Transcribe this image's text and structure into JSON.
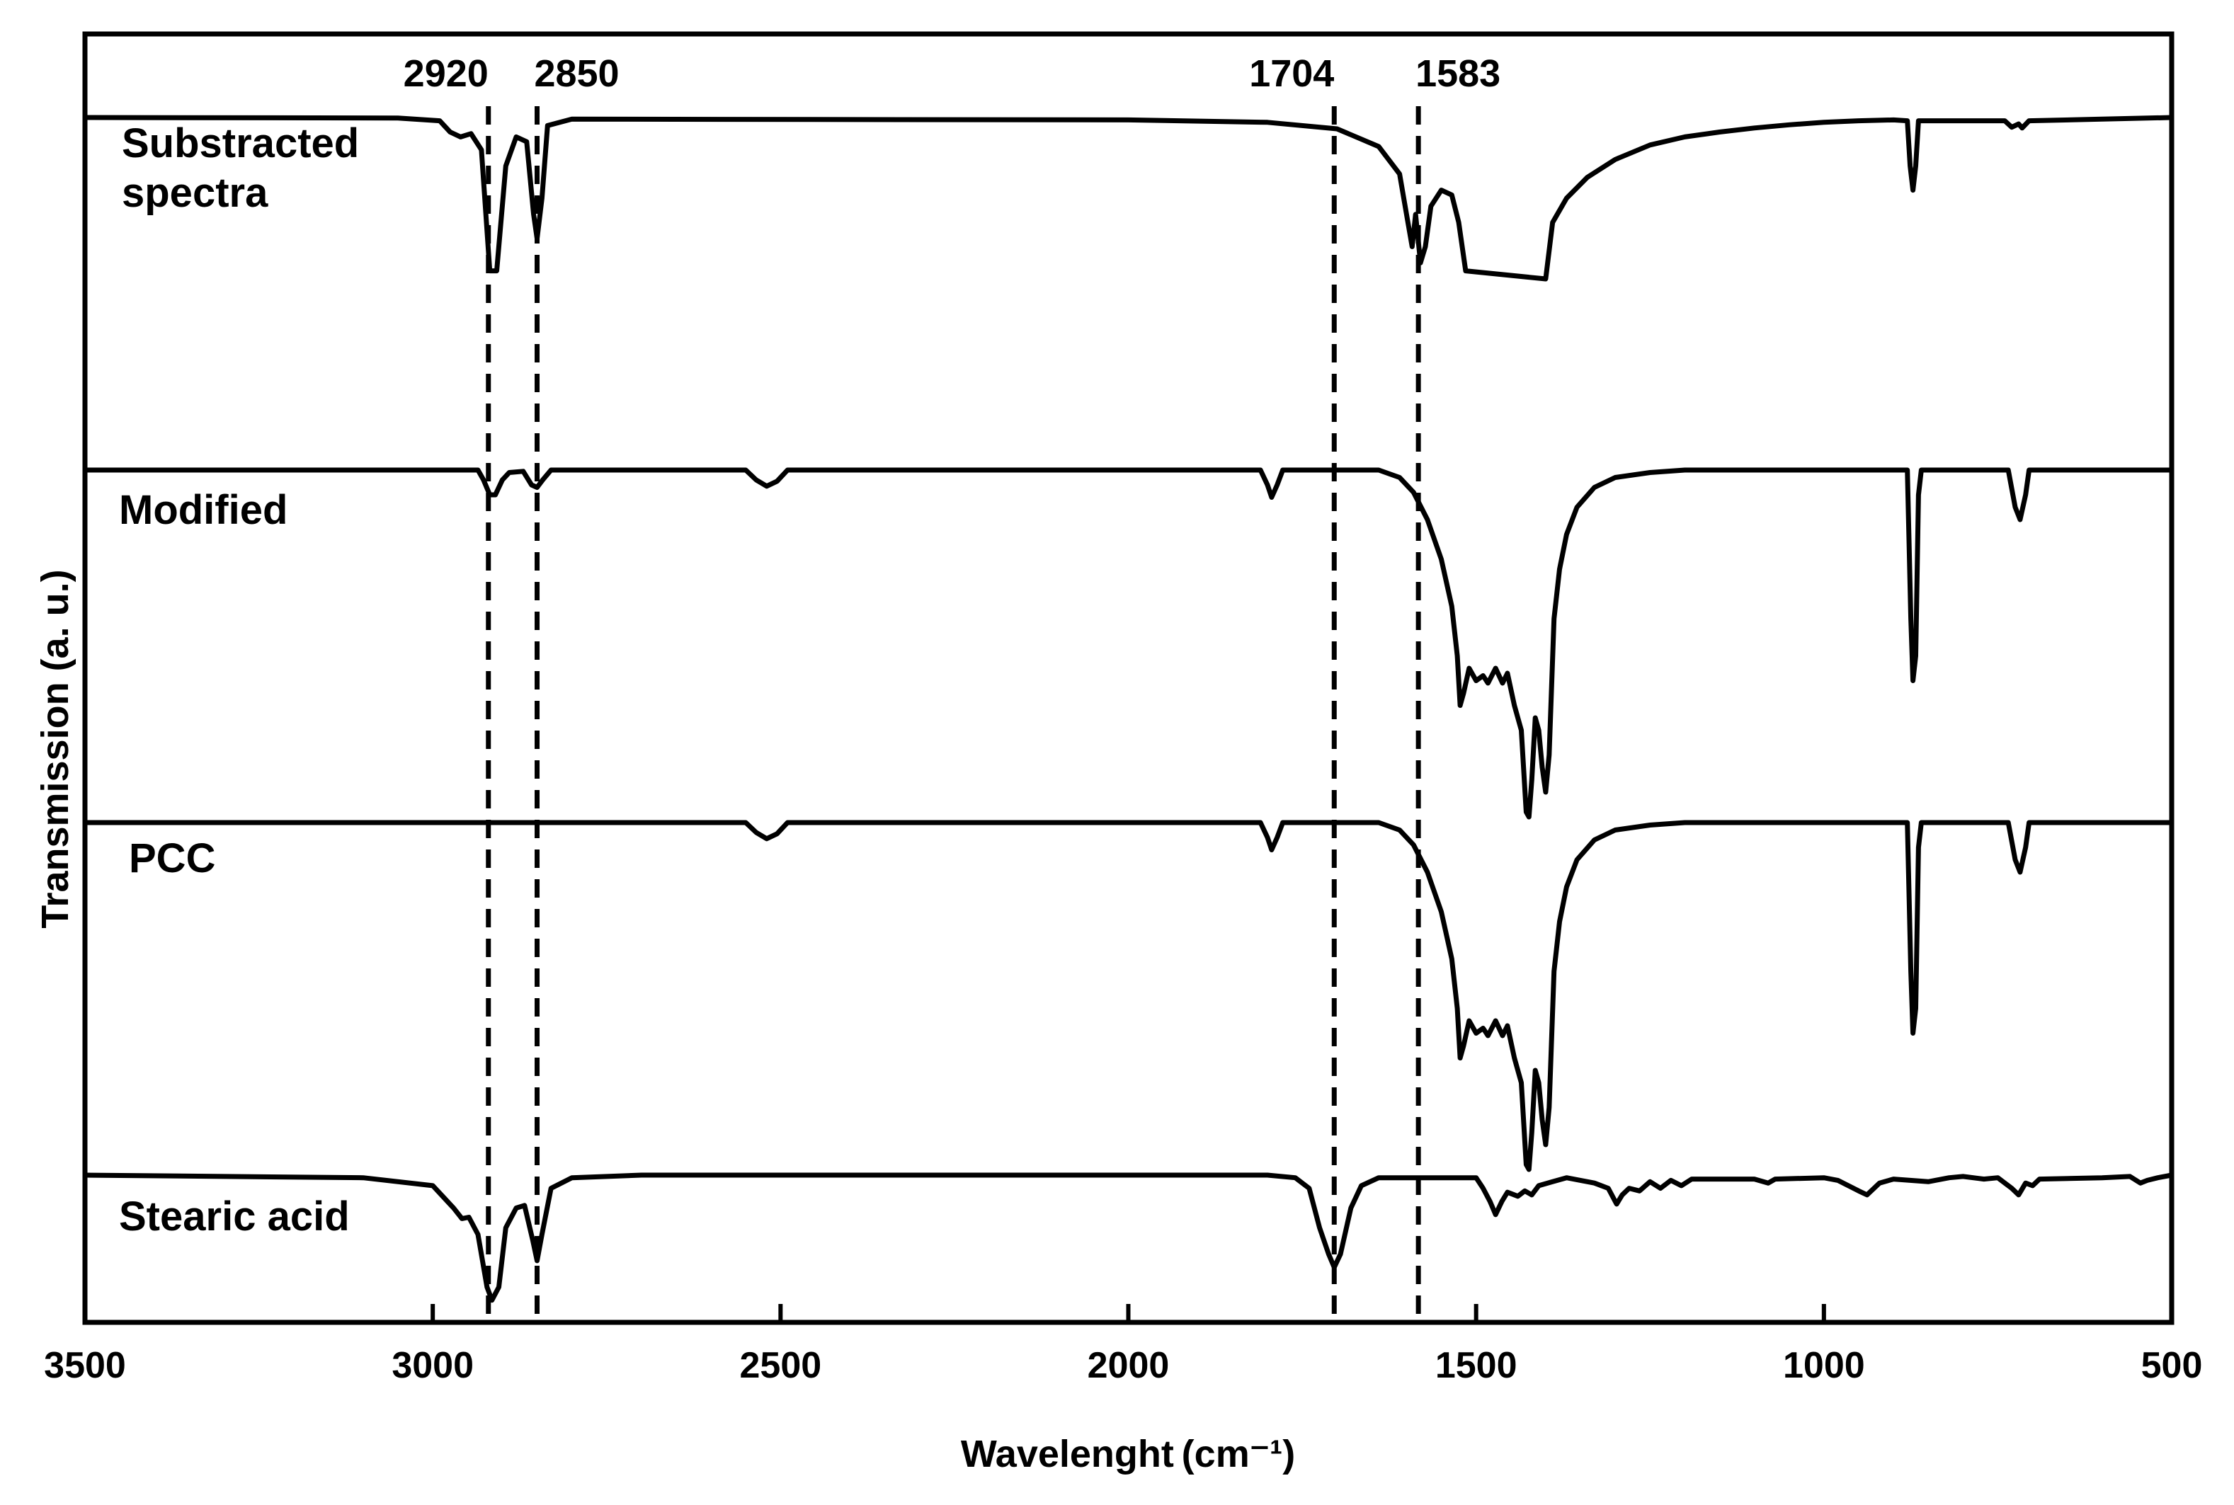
{
  "chart_data": {
    "type": "line",
    "xlabel": "Wavelenght (cm⁻¹)",
    "ylabel": "Transmission (a. u.)",
    "xlim": [
      3500,
      500
    ],
    "x_reversed": true,
    "x_ticks": [
      3500,
      3000,
      2500,
      2000,
      1500,
      1000,
      500
    ],
    "grid": false,
    "legend": "none",
    "y_ticks_shown": false,
    "peak_markers": [
      {
        "x": 2920,
        "label": "2920"
      },
      {
        "x": 2850,
        "label": "2850"
      },
      {
        "x": 1704,
        "label": "1704"
      },
      {
        "x": 1583,
        "label": "1583"
      }
    ],
    "series": [
      {
        "name": "Substracted spectra",
        "baseline": 0.0,
        "points": [
          [
            3500,
            0
          ],
          [
            3050,
            0.003
          ],
          [
            2990,
            0.02
          ],
          [
            2975,
            0.09
          ],
          [
            2960,
            0.12
          ],
          [
            2945,
            0.1
          ],
          [
            2930,
            0.2
          ],
          [
            2918,
            0.95
          ],
          [
            2908,
            0.95
          ],
          [
            2895,
            0.3
          ],
          [
            2880,
            0.12
          ],
          [
            2865,
            0.15
          ],
          [
            2855,
            0.6
          ],
          [
            2850,
            0.75
          ],
          [
            2843,
            0.5
          ],
          [
            2835,
            0.05
          ],
          [
            2800,
            0.01
          ],
          [
            2000,
            0.015
          ],
          [
            1800,
            0.03
          ],
          [
            1700,
            0.07
          ],
          [
            1640,
            0.18
          ],
          [
            1610,
            0.35
          ],
          [
            1600,
            0.6
          ],
          [
            1592,
            0.8
          ],
          [
            1587,
            0.6
          ],
          [
            1580,
            0.9
          ],
          [
            1573,
            0.8
          ],
          [
            1565,
            0.55
          ],
          [
            1550,
            0.45
          ],
          [
            1535,
            0.48
          ],
          [
            1525,
            0.65
          ],
          [
            1515,
            0.95
          ],
          [
            1400,
            1.0
          ],
          [
            1390,
            0.65
          ],
          [
            1370,
            0.5
          ],
          [
            1340,
            0.37
          ],
          [
            1300,
            0.26
          ],
          [
            1250,
            0.17
          ],
          [
            1200,
            0.12
          ],
          [
            1150,
            0.09
          ],
          [
            1100,
            0.065
          ],
          [
            1050,
            0.045
          ],
          [
            1000,
            0.03
          ],
          [
            950,
            0.02
          ],
          [
            900,
            0.015
          ],
          [
            880,
            0.02
          ],
          [
            876,
            0.3
          ],
          [
            872,
            0.45
          ],
          [
            868,
            0.3
          ],
          [
            864,
            0.02
          ],
          [
            740,
            0.02
          ],
          [
            730,
            0.06
          ],
          [
            720,
            0.04
          ],
          [
            715,
            0.065
          ],
          [
            705,
            0.02
          ],
          [
            600,
            0.01
          ],
          [
            500,
            0.0
          ]
        ]
      },
      {
        "name": "Modified",
        "baseline": 0.0,
        "points": [
          [
            3500,
            0
          ],
          [
            2935,
            0
          ],
          [
            2927,
            0.04
          ],
          [
            2918,
            0.1
          ],
          [
            2910,
            0.1
          ],
          [
            2900,
            0.04
          ],
          [
            2890,
            0.01
          ],
          [
            2870,
            0.005
          ],
          [
            2858,
            0.06
          ],
          [
            2850,
            0.07
          ],
          [
            2842,
            0.04
          ],
          [
            2830,
            0
          ],
          [
            2550,
            0
          ],
          [
            2535,
            0.04
          ],
          [
            2520,
            0.065
          ],
          [
            2505,
            0.045
          ],
          [
            2490,
            0
          ],
          [
            1810,
            0
          ],
          [
            1800,
            0.06
          ],
          [
            1794,
            0.11
          ],
          [
            1786,
            0.06
          ],
          [
            1778,
            0
          ],
          [
            1640,
            0
          ],
          [
            1610,
            0.03
          ],
          [
            1590,
            0.09
          ],
          [
            1570,
            0.2
          ],
          [
            1550,
            0.36
          ],
          [
            1535,
            0.55
          ],
          [
            1527,
            0.75
          ],
          [
            1523,
            0.95
          ],
          [
            1518,
            0.9
          ],
          [
            1510,
            0.8
          ],
          [
            1500,
            0.85
          ],
          [
            1490,
            0.83
          ],
          [
            1483,
            0.86
          ],
          [
            1472,
            0.8
          ],
          [
            1462,
            0.86
          ],
          [
            1455,
            0.82
          ],
          [
            1445,
            0.95
          ],
          [
            1435,
            1.05
          ],
          [
            1428,
            1.38
          ],
          [
            1424,
            1.4
          ],
          [
            1420,
            1.25
          ],
          [
            1415,
            1.0
          ],
          [
            1410,
            1.05
          ],
          [
            1405,
            1.2
          ],
          [
            1400,
            1.3
          ],
          [
            1395,
            1.15
          ],
          [
            1388,
            0.6
          ],
          [
            1380,
            0.4
          ],
          [
            1370,
            0.26
          ],
          [
            1355,
            0.15
          ],
          [
            1330,
            0.07
          ],
          [
            1300,
            0.03
          ],
          [
            1250,
            0.01
          ],
          [
            1200,
            0
          ],
          [
            880,
            0
          ],
          [
            875,
            0.6
          ],
          [
            872,
            0.85
          ],
          [
            868,
            0.75
          ],
          [
            864,
            0.1
          ],
          [
            860,
            0
          ],
          [
            735,
            0
          ],
          [
            725,
            0.15
          ],
          [
            718,
            0.2
          ],
          [
            710,
            0.1
          ],
          [
            705,
            0
          ],
          [
            500,
            0
          ]
        ]
      },
      {
        "name": "PCC",
        "baseline": 0.0,
        "points": [
          [
            3500,
            0
          ],
          [
            2550,
            0
          ],
          [
            2535,
            0.04
          ],
          [
            2520,
            0.065
          ],
          [
            2505,
            0.045
          ],
          [
            2490,
            0
          ],
          [
            1810,
            0
          ],
          [
            1800,
            0.06
          ],
          [
            1794,
            0.11
          ],
          [
            1786,
            0.06
          ],
          [
            1778,
            0
          ],
          [
            1640,
            0
          ],
          [
            1610,
            0.03
          ],
          [
            1590,
            0.09
          ],
          [
            1570,
            0.2
          ],
          [
            1550,
            0.36
          ],
          [
            1535,
            0.55
          ],
          [
            1527,
            0.75
          ],
          [
            1523,
            0.95
          ],
          [
            1518,
            0.9
          ],
          [
            1510,
            0.8
          ],
          [
            1500,
            0.85
          ],
          [
            1490,
            0.83
          ],
          [
            1483,
            0.86
          ],
          [
            1472,
            0.8
          ],
          [
            1462,
            0.86
          ],
          [
            1455,
            0.82
          ],
          [
            1445,
            0.95
          ],
          [
            1435,
            1.05
          ],
          [
            1428,
            1.38
          ],
          [
            1424,
            1.4
          ],
          [
            1420,
            1.25
          ],
          [
            1415,
            1.0
          ],
          [
            1410,
            1.05
          ],
          [
            1405,
            1.2
          ],
          [
            1400,
            1.3
          ],
          [
            1395,
            1.15
          ],
          [
            1388,
            0.6
          ],
          [
            1380,
            0.4
          ],
          [
            1370,
            0.26
          ],
          [
            1355,
            0.15
          ],
          [
            1330,
            0.07
          ],
          [
            1300,
            0.03
          ],
          [
            1250,
            0.01
          ],
          [
            1200,
            0
          ],
          [
            880,
            0
          ],
          [
            875,
            0.6
          ],
          [
            872,
            0.85
          ],
          [
            868,
            0.75
          ],
          [
            864,
            0.1
          ],
          [
            860,
            0
          ],
          [
            735,
            0
          ],
          [
            725,
            0.15
          ],
          [
            718,
            0.2
          ],
          [
            710,
            0.1
          ],
          [
            705,
            0
          ],
          [
            500,
            0
          ]
        ]
      },
      {
        "name": "Stearic acid",
        "baseline": 0.0,
        "points": [
          [
            3500,
            0
          ],
          [
            3100,
            0.02
          ],
          [
            3000,
            0.08
          ],
          [
            2970,
            0.25
          ],
          [
            2958,
            0.33
          ],
          [
            2948,
            0.32
          ],
          [
            2935,
            0.45
          ],
          [
            2922,
            0.85
          ],
          [
            2915,
            0.95
          ],
          [
            2905,
            0.85
          ],
          [
            2895,
            0.4
          ],
          [
            2880,
            0.25
          ],
          [
            2868,
            0.23
          ],
          [
            2856,
            0.5
          ],
          [
            2850,
            0.65
          ],
          [
            2843,
            0.45
          ],
          [
            2830,
            0.1
          ],
          [
            2800,
            0.02
          ],
          [
            2700,
            0
          ],
          [
            1800,
            0
          ],
          [
            1760,
            0.02
          ],
          [
            1740,
            0.1
          ],
          [
            1725,
            0.4
          ],
          [
            1712,
            0.6
          ],
          [
            1704,
            0.7
          ],
          [
            1695,
            0.6
          ],
          [
            1680,
            0.25
          ],
          [
            1665,
            0.08
          ],
          [
            1640,
            0.02
          ],
          [
            1500,
            0.02
          ],
          [
            1490,
            0.1
          ],
          [
            1480,
            0.2
          ],
          [
            1472,
            0.3
          ],
          [
            1463,
            0.2
          ],
          [
            1455,
            0.13
          ],
          [
            1440,
            0.16
          ],
          [
            1430,
            0.12
          ],
          [
            1420,
            0.15
          ],
          [
            1410,
            0.08
          ],
          [
            1390,
            0.05
          ],
          [
            1370,
            0.02
          ],
          [
            1350,
            0.04
          ],
          [
            1330,
            0.06
          ],
          [
            1310,
            0.1
          ],
          [
            1298,
            0.22
          ],
          [
            1290,
            0.15
          ],
          [
            1280,
            0.1
          ],
          [
            1265,
            0.12
          ],
          [
            1250,
            0.05
          ],
          [
            1235,
            0.1
          ],
          [
            1220,
            0.04
          ],
          [
            1205,
            0.08
          ],
          [
            1190,
            0.03
          ],
          [
            1100,
            0.03
          ],
          [
            1080,
            0.06
          ],
          [
            1070,
            0.03
          ],
          [
            1000,
            0.02
          ],
          [
            980,
            0.04
          ],
          [
            950,
            0.12
          ],
          [
            938,
            0.15
          ],
          [
            920,
            0.06
          ],
          [
            900,
            0.03
          ],
          [
            850,
            0.05
          ],
          [
            820,
            0.02
          ],
          [
            800,
            0.01
          ],
          [
            770,
            0.03
          ],
          [
            750,
            0.02
          ],
          [
            730,
            0.1
          ],
          [
            720,
            0.15
          ],
          [
            710,
            0.06
          ],
          [
            700,
            0.08
          ],
          [
            690,
            0.03
          ],
          [
            600,
            0.02
          ],
          [
            560,
            0.01
          ],
          [
            545,
            0.06
          ],
          [
            535,
            0.04
          ],
          [
            520,
            0.02
          ],
          [
            500,
            0
          ]
        ]
      }
    ]
  }
}
